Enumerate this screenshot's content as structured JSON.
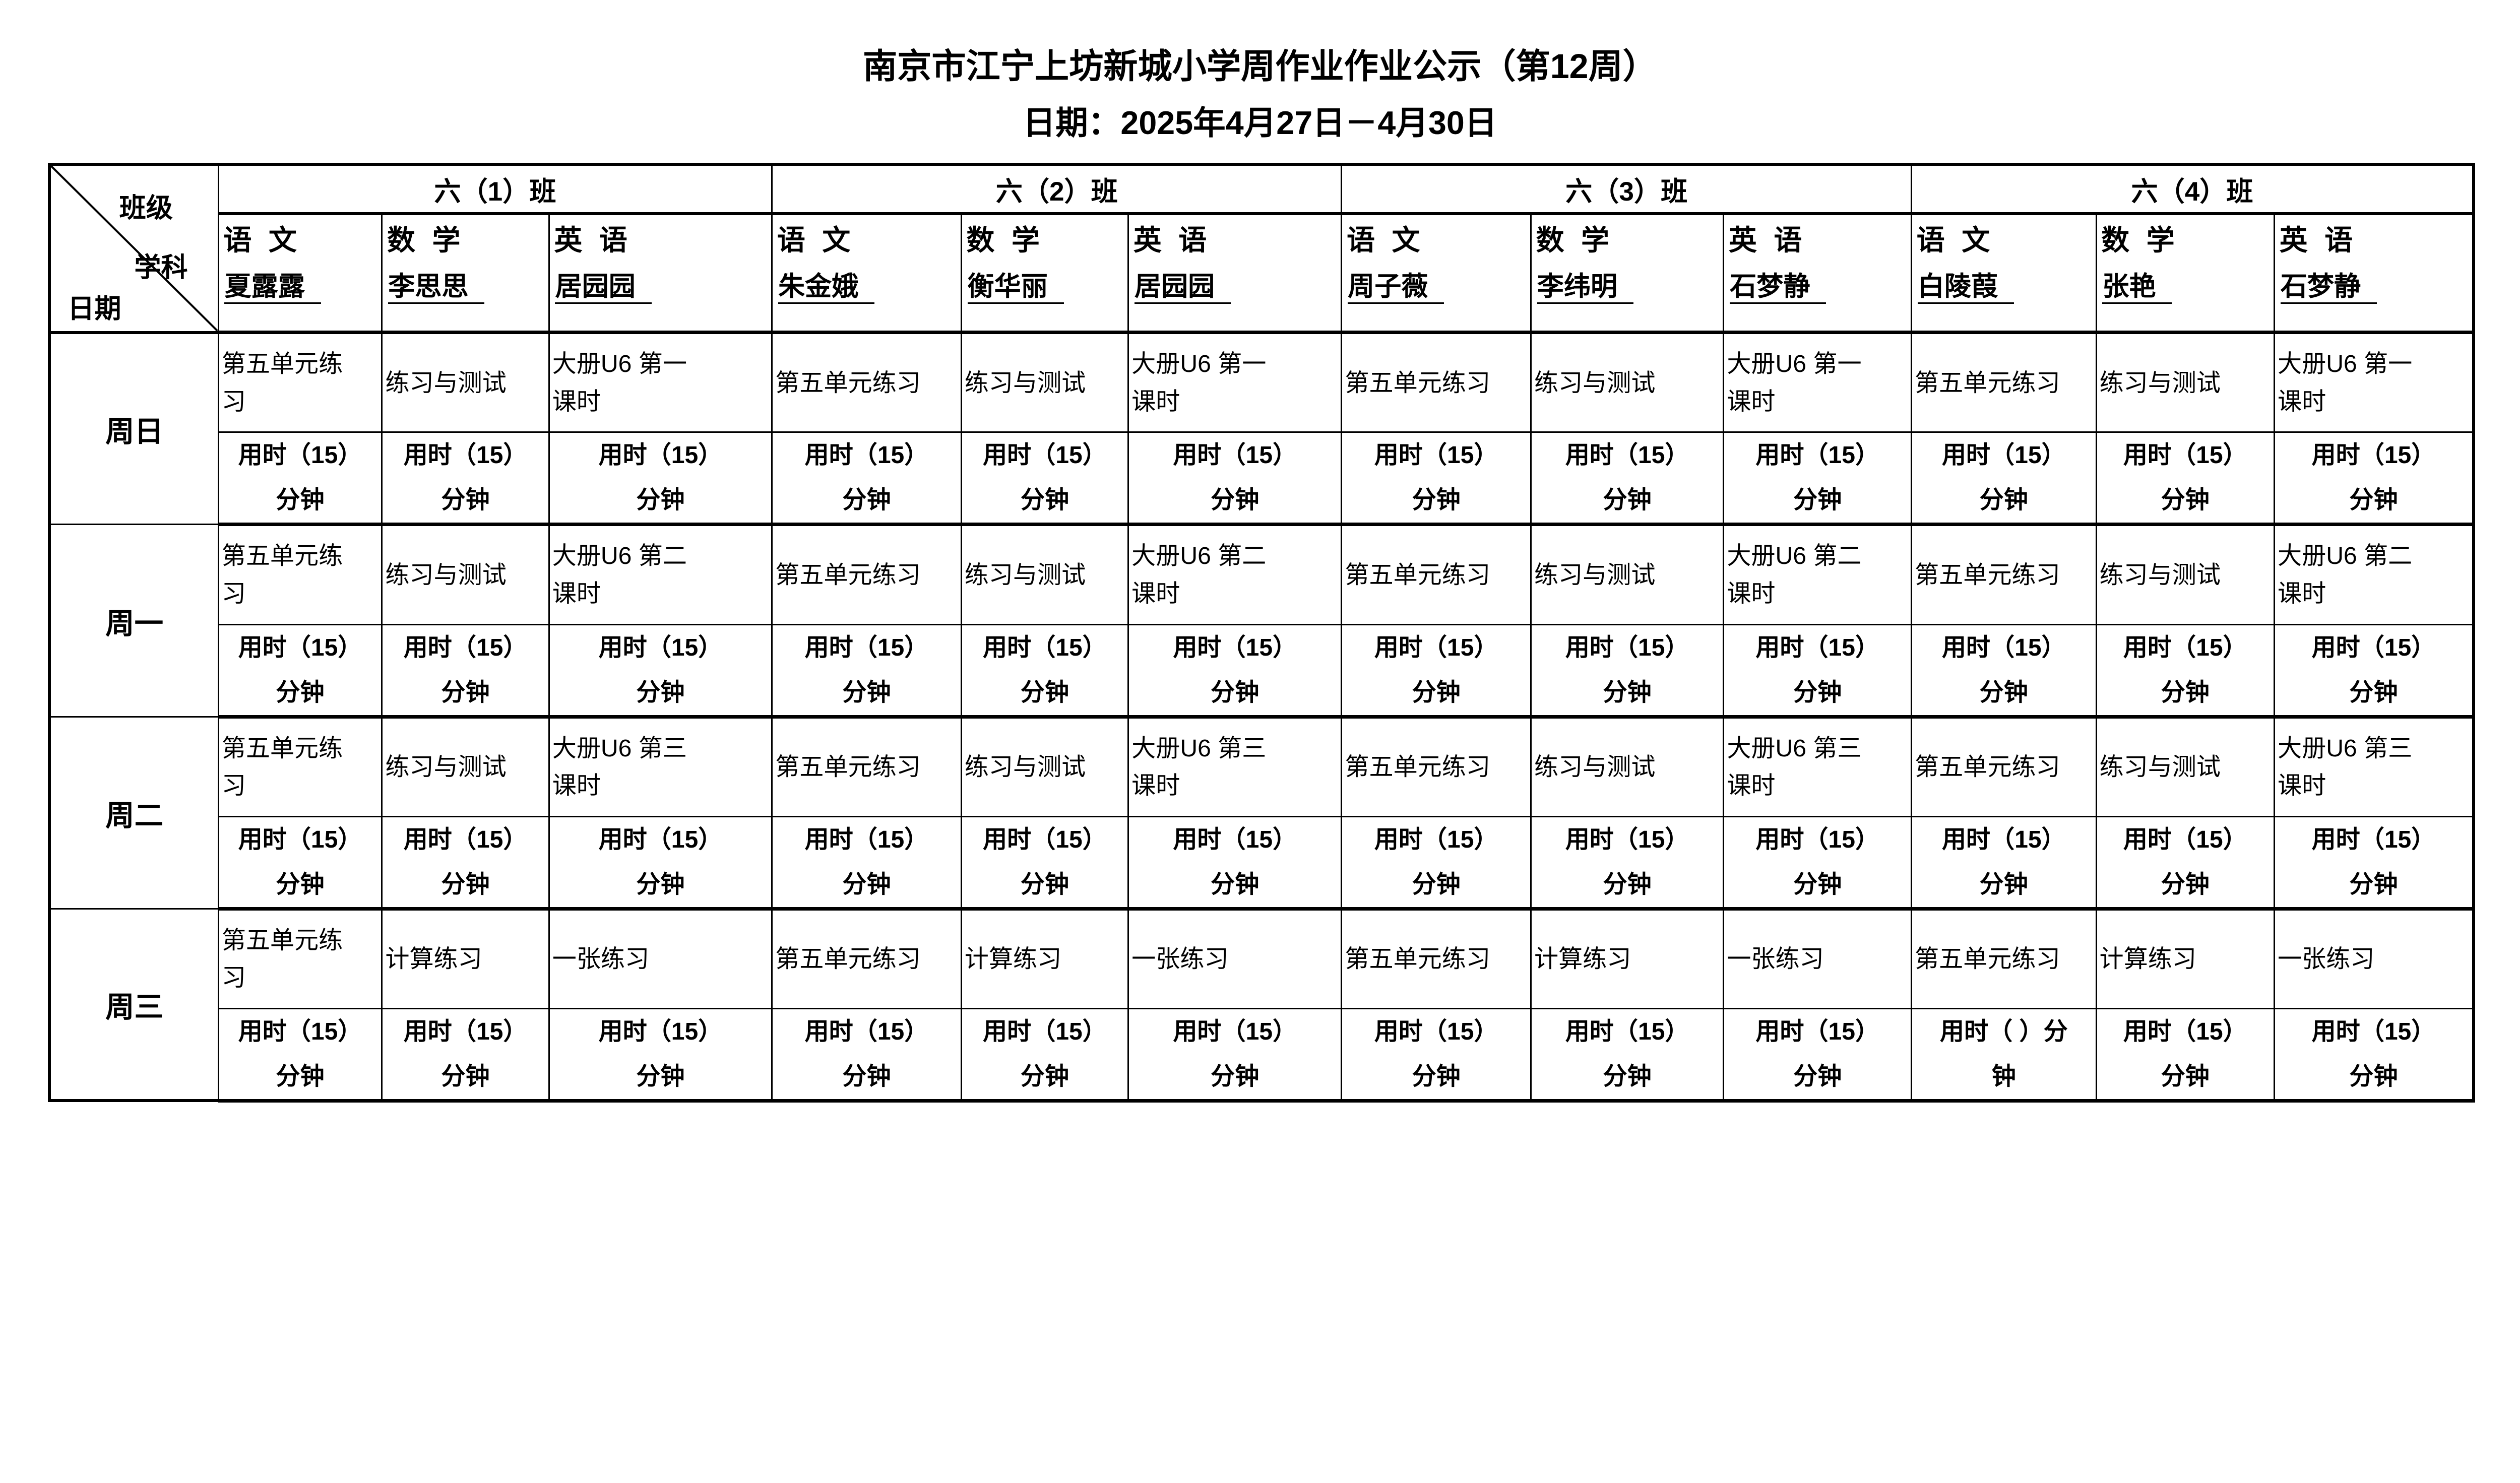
{
  "header": {
    "title": "南京市江宁上坊新城小学周作业作业公示（第12周）",
    "date_line": "日期：2025年4月27日－4月30日"
  },
  "corner": {
    "class_label": "班级",
    "subject_label": "学科",
    "date_label": "日期"
  },
  "classes": [
    {
      "name": "六（1）班",
      "subjects": [
        {
          "subject": "语 文",
          "teacher": "夏露露"
        },
        {
          "subject": "数 学",
          "teacher": "李思思"
        },
        {
          "subject": "英 语",
          "teacher": "居园园"
        }
      ]
    },
    {
      "name": "六（2）班",
      "subjects": [
        {
          "subject": "语 文",
          "teacher": "朱金娥"
        },
        {
          "subject": "数 学",
          "teacher": "衡华丽"
        },
        {
          "subject": "英 语",
          "teacher": "居园园"
        }
      ]
    },
    {
      "name": "六（3）班",
      "subjects": [
        {
          "subject": "语 文",
          "teacher": "周子薇"
        },
        {
          "subject": "数 学",
          "teacher": "李纬明"
        },
        {
          "subject": "英 语",
          "teacher": "石梦静"
        }
      ]
    },
    {
      "name": "六（4）班",
      "subjects": [
        {
          "subject": "语 文",
          "teacher": "白陵葭"
        },
        {
          "subject": "数 学",
          "teacher": "张艳"
        },
        {
          "subject": "英 语",
          "teacher": "石梦静"
        }
      ]
    }
  ],
  "days": [
    {
      "label": "周日",
      "cells": [
        {
          "homework": "第五单元练\n习",
          "time": "用时（15）\n分钟"
        },
        {
          "homework": "练习与测试",
          "time": "用时（15）\n分钟"
        },
        {
          "homework": "大册U6 第一\n课时",
          "time": "用时（15）\n分钟"
        },
        {
          "homework": "第五单元练习",
          "time": "用时（15）\n分钟"
        },
        {
          "homework": "练习与测试",
          "time": "用时（15）\n分钟"
        },
        {
          "homework": "大册U6 第一\n课时",
          "time": "用时（15）\n分钟"
        },
        {
          "homework": "第五单元练习",
          "time": "用时（15）\n分钟"
        },
        {
          "homework": "练习与测试",
          "time": "用时（15）\n分钟"
        },
        {
          "homework": "大册U6 第一\n课时",
          "time": "用时（15）\n分钟"
        },
        {
          "homework": "第五单元练习",
          "time": "用时（15）\n分钟"
        },
        {
          "homework": "练习与测试",
          "time": "用时（15）\n分钟"
        },
        {
          "homework": "大册U6 第一\n课时",
          "time": "用时（15）\n分钟"
        }
      ]
    },
    {
      "label": "周一",
      "cells": [
        {
          "homework": "第五单元练\n习",
          "time": "用时（15）\n分钟"
        },
        {
          "homework": "练习与测试",
          "time": "用时（15）\n分钟"
        },
        {
          "homework": "大册U6 第二\n课时",
          "time": "用时（15）\n分钟"
        },
        {
          "homework": "第五单元练习",
          "time": "用时（15）\n分钟"
        },
        {
          "homework": "练习与测试",
          "time": "用时（15）\n分钟"
        },
        {
          "homework": "大册U6 第二\n课时",
          "time": "用时（15）\n分钟"
        },
        {
          "homework": "第五单元练习",
          "time": "用时（15）\n分钟"
        },
        {
          "homework": "练习与测试",
          "time": "用时（15）\n分钟"
        },
        {
          "homework": "大册U6 第二\n课时",
          "time": "用时（15）\n分钟"
        },
        {
          "homework": "第五单元练习",
          "time": "用时（15）\n分钟"
        },
        {
          "homework": "练习与测试",
          "time": "用时（15）\n分钟"
        },
        {
          "homework": "大册U6 第二\n课时",
          "time": "用时（15）\n分钟"
        }
      ]
    },
    {
      "label": "周二",
      "cells": [
        {
          "homework": "第五单元练\n习",
          "time": "用时（15）\n分钟"
        },
        {
          "homework": "练习与测试",
          "time": "用时（15）\n分钟"
        },
        {
          "homework": "大册U6 第三\n课时",
          "time": "用时（15）\n分钟"
        },
        {
          "homework": "第五单元练习",
          "time": "用时（15）\n分钟"
        },
        {
          "homework": "练习与测试",
          "time": "用时（15）\n分钟"
        },
        {
          "homework": "大册U6 第三\n课时",
          "time": "用时（15）\n分钟"
        },
        {
          "homework": "第五单元练习",
          "time": "用时（15）\n分钟"
        },
        {
          "homework": "练习与测试",
          "time": "用时（15）\n分钟"
        },
        {
          "homework": "大册U6 第三\n课时",
          "time": "用时（15）\n分钟"
        },
        {
          "homework": "第五单元练习",
          "time": "用时（15）\n分钟"
        },
        {
          "homework": "练习与测试",
          "time": "用时（15）\n分钟"
        },
        {
          "homework": "大册U6 第三\n课时",
          "time": "用时（15）\n分钟"
        }
      ]
    },
    {
      "label": "周三",
      "cells": [
        {
          "homework": "第五单元练\n习",
          "time": "用时（15）\n分钟"
        },
        {
          "homework": "计算练习",
          "time": "用时（15）\n分钟"
        },
        {
          "homework": "一张练习",
          "time": "用时（15）\n分钟"
        },
        {
          "homework": "第五单元练习",
          "time": "用时（15）\n分钟"
        },
        {
          "homework": "计算练习",
          "time": "用时（15）\n分钟"
        },
        {
          "homework": "一张练习",
          "time": "用时（15）\n分钟"
        },
        {
          "homework": "第五单元练习",
          "time": "用时（15）\n分钟"
        },
        {
          "homework": "计算练习",
          "time": "用时（15）\n分钟"
        },
        {
          "homework": "一张练习",
          "time": "用时（15）\n分钟"
        },
        {
          "homework": "第五单元练习",
          "time": "用时（ ）分\n钟"
        },
        {
          "homework": "计算练习",
          "time": "用时（15）\n分钟"
        },
        {
          "homework": "一张练习",
          "time": "用时（15）\n分钟"
        }
      ]
    }
  ]
}
